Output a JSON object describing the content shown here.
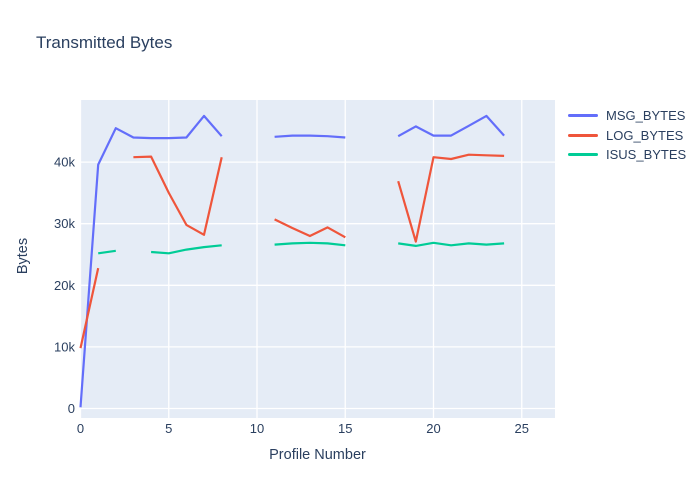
{
  "chart": {
    "title": "Transmitted Bytes"
  },
  "chart_data": {
    "type": "line",
    "title": "Transmitted Bytes",
    "xlabel": "Profile Number",
    "ylabel": "Bytes",
    "grid": true,
    "legend_position": "right-outside",
    "plot_bg_color": "#e5ecf6",
    "grid_color": "#ffffff",
    "text_color": "#2a3f5f",
    "xlim": [
      -0.03,
      26.9
    ],
    "ylim": [
      -1500,
      50100
    ],
    "x_ticks": [
      {
        "v": 0,
        "label": "0"
      },
      {
        "v": 5,
        "label": "5"
      },
      {
        "v": 10,
        "label": "10"
      },
      {
        "v": 15,
        "label": "15"
      },
      {
        "v": 20,
        "label": "20"
      },
      {
        "v": 25,
        "label": "25"
      }
    ],
    "y_ticks": [
      {
        "v": 0,
        "label": "0"
      },
      {
        "v": 10000,
        "label": "10k"
      },
      {
        "v": 20000,
        "label": "20k"
      },
      {
        "v": 30000,
        "label": "30k"
      },
      {
        "v": 40000,
        "label": "40k"
      }
    ],
    "x": [
      0,
      1,
      2,
      3,
      4,
      5,
      6,
      7,
      8,
      9,
      10,
      11,
      12,
      13,
      14,
      15,
      16,
      17,
      18,
      19,
      20,
      21,
      22,
      23,
      24
    ],
    "series": [
      {
        "name": "MSG_BYTES",
        "color": "#636efa",
        "values": [
          200,
          39600,
          45500,
          44000,
          43900,
          43900,
          44000,
          47500,
          44200,
          null,
          null,
          44100,
          44300,
          44300,
          44200,
          44000,
          null,
          null,
          44200,
          45800,
          44300,
          44300,
          45900,
          47500,
          44300
        ]
      },
      {
        "name": "LOG_BYTES",
        "color": "#EF553B",
        "values": [
          9800,
          22800,
          null,
          40800,
          40900,
          35000,
          29800,
          28200,
          40800,
          null,
          null,
          30700,
          29300,
          28000,
          29400,
          27800,
          null,
          null,
          36900,
          27100,
          40800,
          40500,
          41200,
          41100,
          41000
        ]
      },
      {
        "name": "ISUS_BYTES",
        "color": "#00cc96",
        "values": [
          null,
          25200,
          25600,
          null,
          25400,
          25200,
          25800,
          26200,
          26500,
          null,
          null,
          26600,
          26800,
          26900,
          26800,
          26500,
          null,
          null,
          26800,
          26400,
          26900,
          26500,
          26800,
          26600,
          26800
        ]
      }
    ]
  }
}
